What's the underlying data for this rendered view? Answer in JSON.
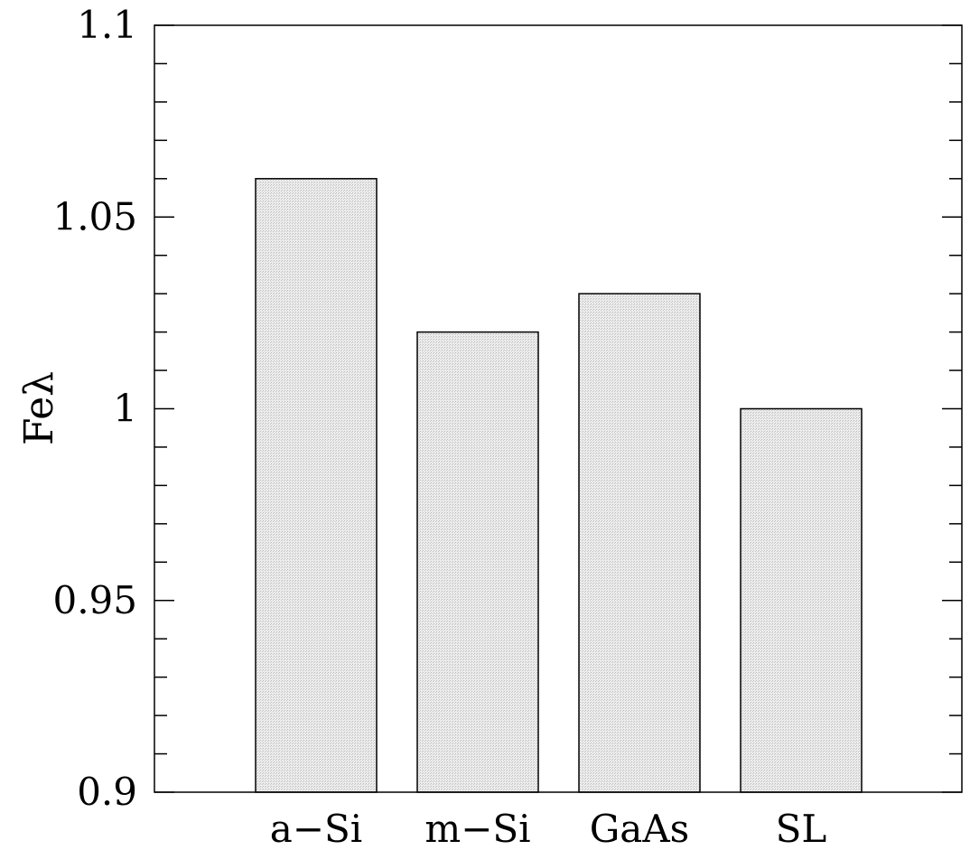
{
  "chart_data": {
    "type": "bar",
    "title": "",
    "xlabel": "",
    "ylabel": "Feλ",
    "categories": [
      "a−Si",
      "m−Si",
      "GaAs",
      "SL"
    ],
    "values": [
      1.06,
      1.02,
      1.03,
      1.0
    ],
    "ylim": [
      0.9,
      1.1
    ],
    "yticks_major": [
      0.9,
      0.95,
      1.0,
      1.05,
      1.1
    ],
    "ytick_labels": [
      "0.9",
      "0.95",
      "1",
      "1.05",
      "1.1"
    ],
    "yticks_minor_step": 0.01,
    "grid": false,
    "legend": "none",
    "bar_fill_color": "#e2e2e2",
    "bar_stroke_color": "#000000"
  }
}
